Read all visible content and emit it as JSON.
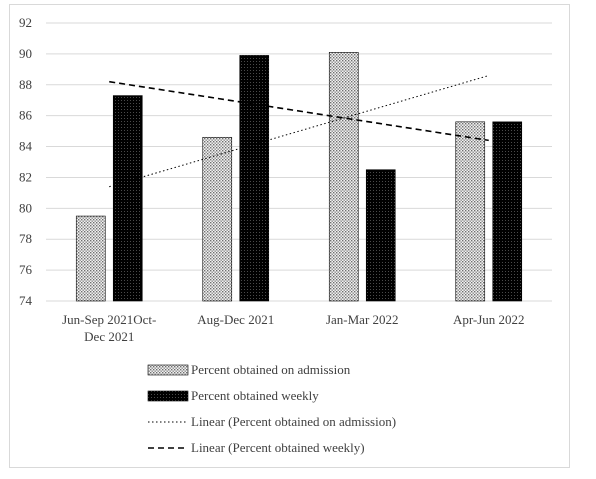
{
  "chart_data": {
    "type": "bar",
    "title": "",
    "xlabel": "",
    "ylabel": "",
    "categories": [
      [
        "Jun-Sep 2021Oct-",
        "Dec 2021"
      ],
      [
        "Aug-Dec 2021"
      ],
      [
        "Jan-Mar 2022"
      ],
      [
        "Apr-Jun 2022"
      ]
    ],
    "ylim": [
      74,
      92
    ],
    "yticks": [
      74,
      76,
      78,
      80,
      82,
      84,
      86,
      88,
      90,
      92
    ],
    "grid": true,
    "series": [
      {
        "name": "Percent obtained on admission",
        "values": [
          79.5,
          84.6,
          90.1,
          85.6
        ],
        "fill": "dotted",
        "color": "#b0b0b0"
      },
      {
        "name": "Percent obtained weekly",
        "values": [
          87.3,
          89.9,
          82.5,
          85.6
        ],
        "fill": "dark",
        "color": "#111111"
      }
    ],
    "trendlines": [
      {
        "name": "Linear (Percent obtained on admission)",
        "style": "dotted",
        "start": 81.4,
        "end": 88.6
      },
      {
        "name": "Linear (Percent obtained weekly)",
        "style": "dashed",
        "start": 88.2,
        "end": 84.4
      }
    ],
    "legend_position": "bottom"
  }
}
